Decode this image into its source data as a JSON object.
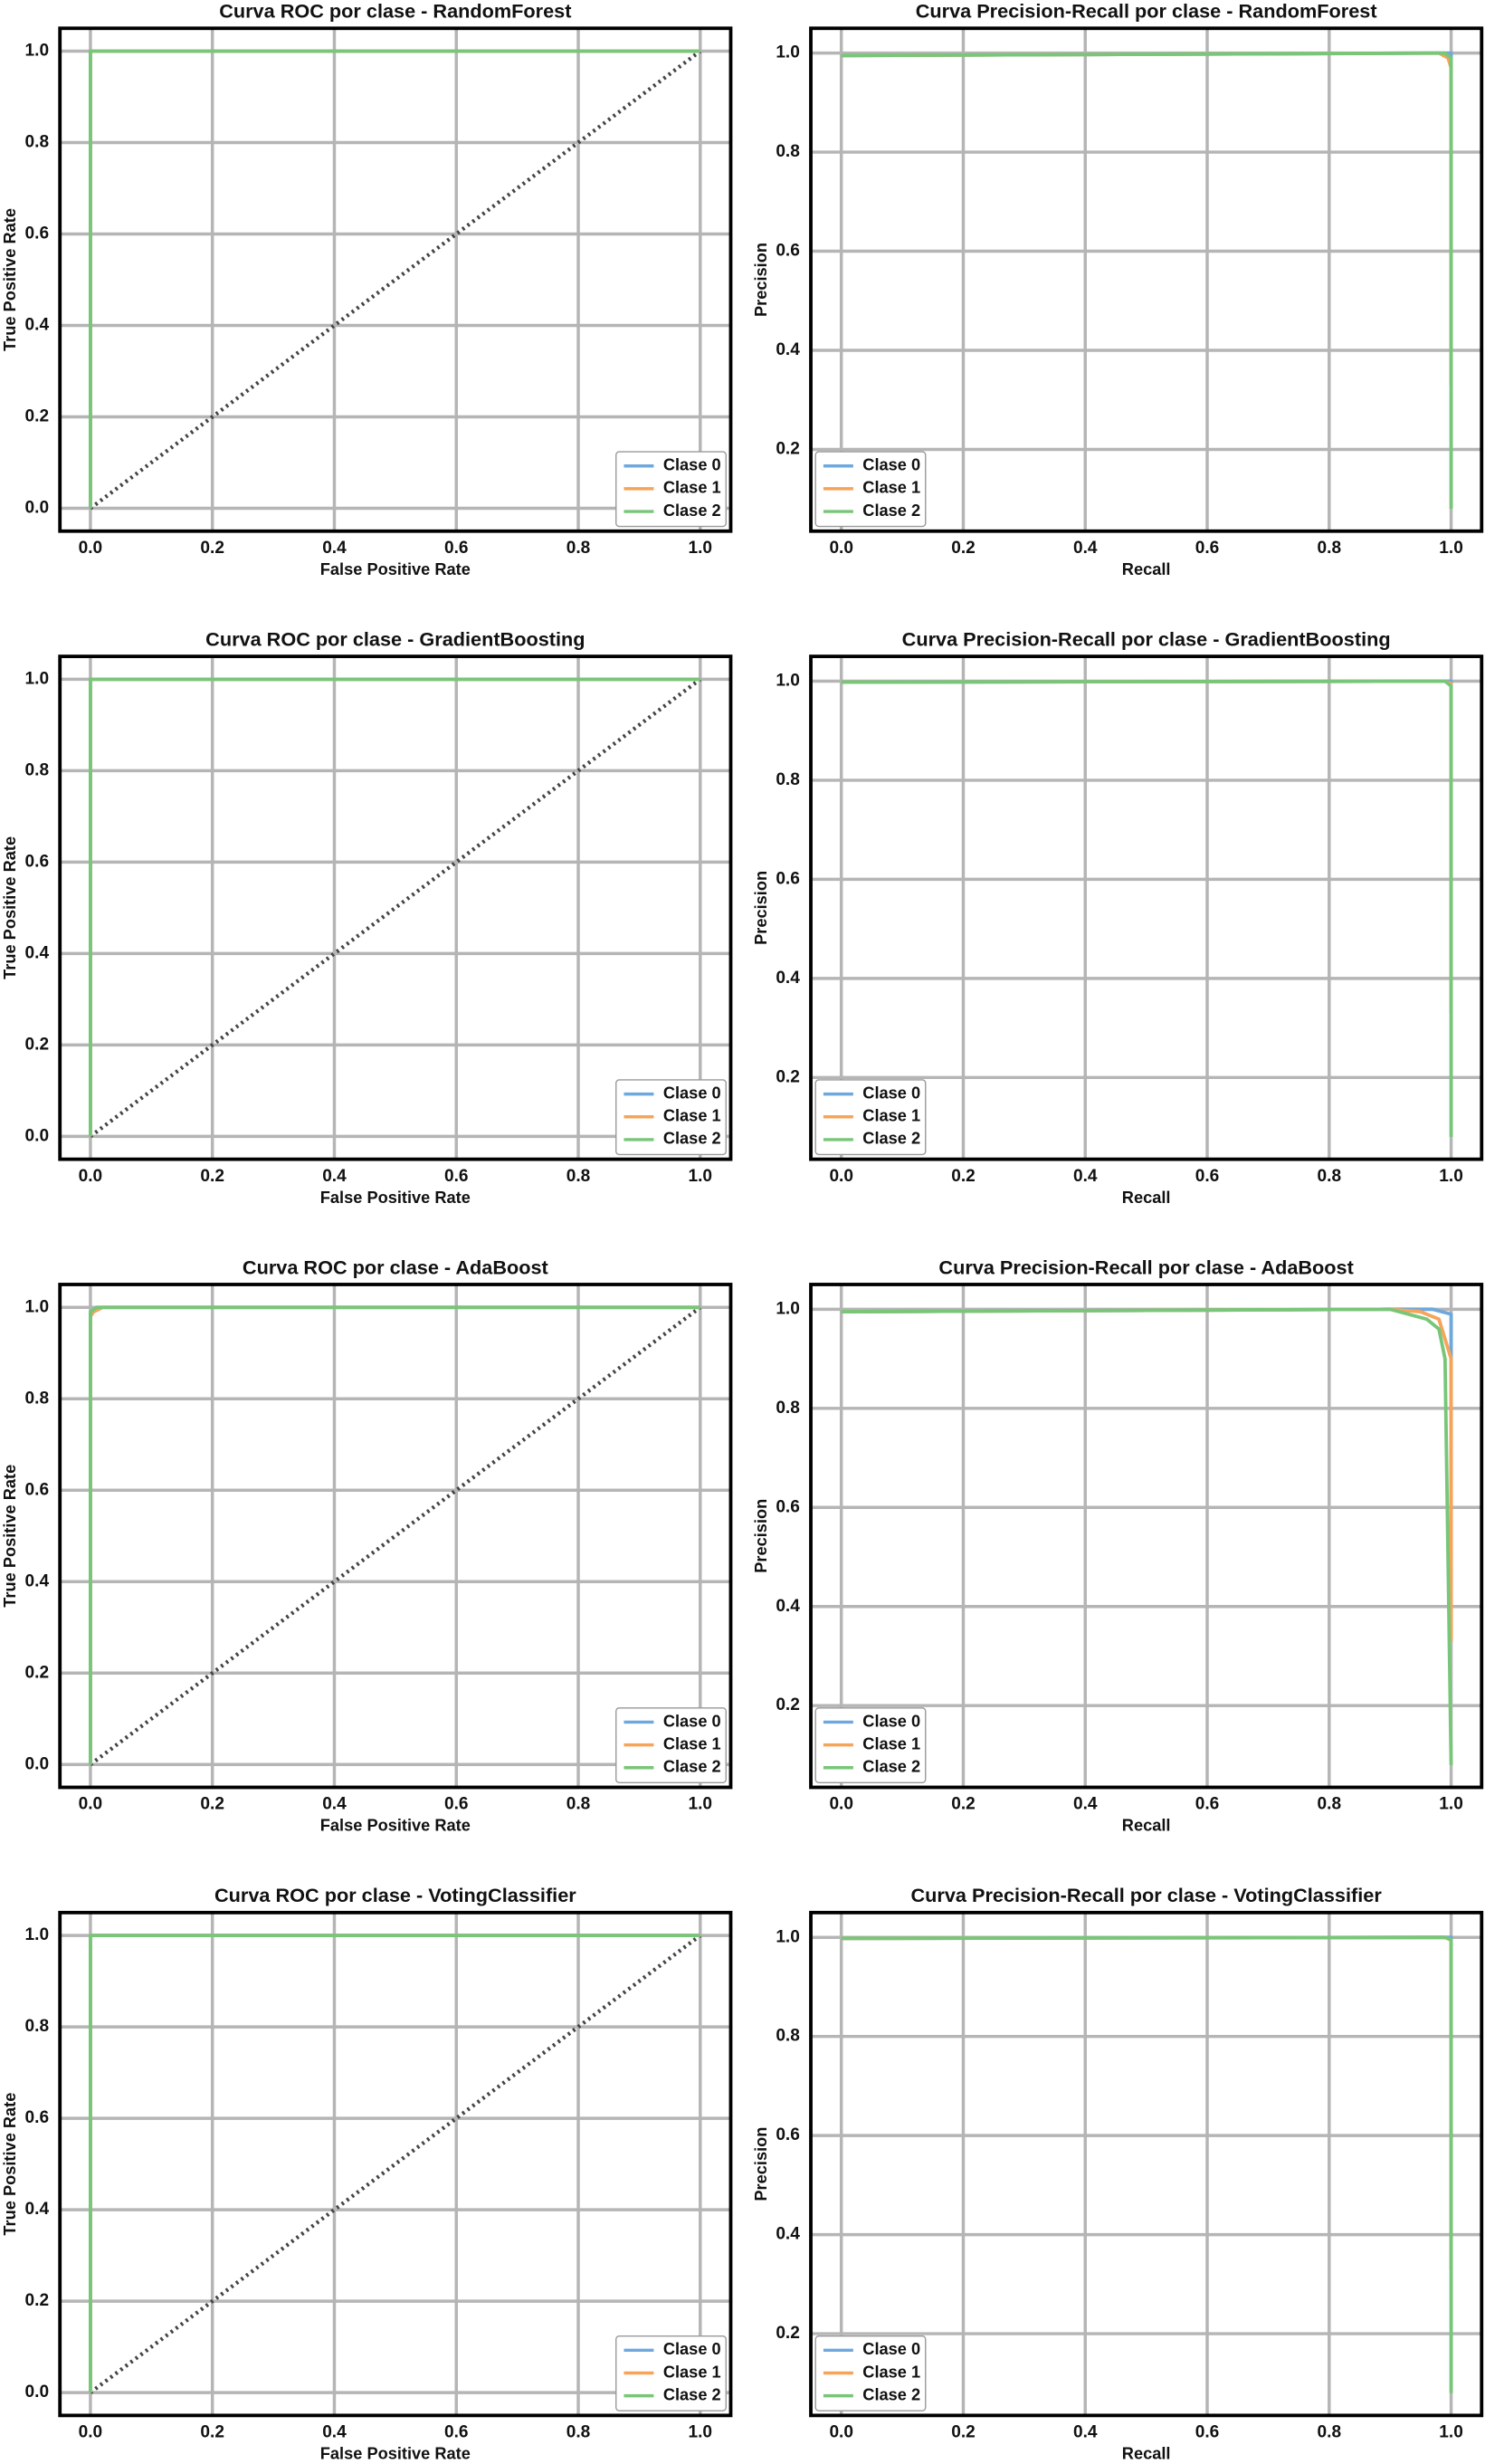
{
  "chart_data": [
    {
      "type": "line",
      "title": "Curva ROC por clase -  RandomForest",
      "xlabel": "False Positive Rate",
      "ylabel": "True Positive Rate",
      "xlim": [
        -0.05,
        1.05
      ],
      "ylim": [
        -0.05,
        1.05
      ],
      "grid": true,
      "legend": "lower right",
      "xticks": [
        {
          "value": 0,
          "label": "0.0"
        },
        0.2,
        0.4,
        0.6,
        0.8,
        {
          "value": 1,
          "label": "1.0"
        }
      ],
      "yticks": [
        {
          "value": 0,
          "label": "0.0"
        },
        0.2,
        0.4,
        0.6,
        0.8,
        {
          "value": 1,
          "label": "1.0"
        }
      ],
      "reference": {
        "x": [
          0,
          1
        ],
        "values": [
          0,
          1
        ],
        "color": "#444444"
      },
      "series": [
        {
          "name": "Clase 0",
          "color": "#6fa8dc",
          "x": [
            0,
            0,
            1
          ],
          "values": [
            0,
            1,
            1
          ]
        },
        {
          "name": "Clase 1",
          "color": "#f6a45a",
          "x": [
            0,
            0,
            1
          ],
          "values": [
            0,
            1,
            1
          ]
        },
        {
          "name": "Clase 2",
          "color": "#78c679",
          "x": [
            0,
            0,
            1
          ],
          "values": [
            0,
            1,
            1
          ]
        }
      ]
    },
    {
      "type": "line",
      "title": "Curva Precision-Recall por clase - RandomForest",
      "xlabel": "Recall",
      "ylabel": "Precision",
      "xlim": [
        -0.05,
        1.05
      ],
      "ylim": [
        0.035,
        1.05
      ],
      "grid": true,
      "legend": "lower left",
      "xticks": [
        {
          "value": 0,
          "label": "0.0"
        },
        0.2,
        0.4,
        0.6,
        0.8,
        {
          "value": 1,
          "label": "1.0"
        }
      ],
      "yticks": [
        0.2,
        0.4,
        0.6,
        0.8,
        {
          "value": 1,
          "label": "1.0"
        }
      ],
      "series": [
        {
          "name": "Clase 0",
          "color": "#6fa8dc",
          "x": [
            0,
            0.98,
            1,
            1
          ],
          "values": [
            0.995,
            1,
            1,
            0.33
          ]
        },
        {
          "name": "Clase 1",
          "color": "#f6a45a",
          "x": [
            0,
            0.98,
            0.995,
            1,
            1
          ],
          "values": [
            0.995,
            1,
            0.99,
            0.97,
            0.33
          ]
        },
        {
          "name": "Clase 2",
          "color": "#78c679",
          "x": [
            0,
            0.99,
            1,
            1
          ],
          "values": [
            0.995,
            1,
            0.99,
            0.08
          ]
        }
      ]
    },
    {
      "type": "line",
      "title": "Curva ROC por clase -  GradientBoosting",
      "xlabel": "False Positive Rate",
      "ylabel": "True Positive Rate",
      "xlim": [
        -0.05,
        1.05
      ],
      "ylim": [
        -0.05,
        1.05
      ],
      "grid": true,
      "legend": "lower right",
      "xticks": [
        {
          "value": 0,
          "label": "0.0"
        },
        0.2,
        0.4,
        0.6,
        0.8,
        {
          "value": 1,
          "label": "1.0"
        }
      ],
      "yticks": [
        {
          "value": 0,
          "label": "0.0"
        },
        0.2,
        0.4,
        0.6,
        0.8,
        {
          "value": 1,
          "label": "1.0"
        }
      ],
      "reference": {
        "x": [
          0,
          1
        ],
        "values": [
          0,
          1
        ],
        "color": "#444444"
      },
      "series": [
        {
          "name": "Clase 0",
          "color": "#6fa8dc",
          "x": [
            0,
            0,
            1
          ],
          "values": [
            0,
            1,
            1
          ]
        },
        {
          "name": "Clase 1",
          "color": "#f6a45a",
          "x": [
            0,
            0,
            1
          ],
          "values": [
            0,
            1,
            1
          ]
        },
        {
          "name": "Clase 2",
          "color": "#78c679",
          "x": [
            0,
            0,
            1
          ],
          "values": [
            0,
            1,
            1
          ]
        }
      ]
    },
    {
      "type": "line",
      "title": "Curva Precision-Recall por clase - GradientBoosting",
      "xlabel": "Recall",
      "ylabel": "Precision",
      "xlim": [
        -0.05,
        1.05
      ],
      "ylim": [
        0.035,
        1.05
      ],
      "grid": true,
      "legend": "lower left",
      "xticks": [
        {
          "value": 0,
          "label": "0.0"
        },
        0.2,
        0.4,
        0.6,
        0.8,
        {
          "value": 1,
          "label": "1.0"
        }
      ],
      "yticks": [
        0.2,
        0.4,
        0.6,
        0.8,
        {
          "value": 1,
          "label": "1.0"
        }
      ],
      "series": [
        {
          "name": "Clase 0",
          "color": "#6fa8dc",
          "x": [
            0,
            0.99,
            1,
            1
          ],
          "values": [
            0.998,
            1,
            1,
            0.33
          ]
        },
        {
          "name": "Clase 1",
          "color": "#f6a45a",
          "x": [
            0,
            0.99,
            1,
            1
          ],
          "values": [
            0.998,
            1,
            0.995,
            0.33
          ]
        },
        {
          "name": "Clase 2",
          "color": "#78c679",
          "x": [
            0,
            0.99,
            1,
            1
          ],
          "values": [
            0.998,
            1,
            0.99,
            0.08
          ]
        }
      ]
    },
    {
      "type": "line",
      "title": "Curva ROC por clase -  AdaBoost",
      "xlabel": "False Positive Rate",
      "ylabel": "True Positive Rate",
      "xlim": [
        -0.05,
        1.05
      ],
      "ylim": [
        -0.05,
        1.05
      ],
      "grid": true,
      "legend": "lower right",
      "xticks": [
        {
          "value": 0,
          "label": "0.0"
        },
        0.2,
        0.4,
        0.6,
        0.8,
        {
          "value": 1,
          "label": "1.0"
        }
      ],
      "yticks": [
        {
          "value": 0,
          "label": "0.0"
        },
        0.2,
        0.4,
        0.6,
        0.8,
        {
          "value": 1,
          "label": "1.0"
        }
      ],
      "reference": {
        "x": [
          0,
          1
        ],
        "values": [
          0,
          1
        ],
        "color": "#444444"
      },
      "series": [
        {
          "name": "Clase 0",
          "color": "#6fa8dc",
          "x": [
            0,
            0,
            0.01,
            1
          ],
          "values": [
            0,
            0.99,
            1,
            1
          ]
        },
        {
          "name": "Clase 1",
          "color": "#f6a45a",
          "x": [
            0,
            0,
            0.005,
            0.02,
            1
          ],
          "values": [
            0,
            0.98,
            0.99,
            1,
            1
          ]
        },
        {
          "name": "Clase 2",
          "color": "#78c679",
          "x": [
            0,
            0,
            0.01,
            1
          ],
          "values": [
            0,
            0.99,
            1,
            1
          ]
        }
      ]
    },
    {
      "type": "line",
      "title": "Curva Precision-Recall por clase - AdaBoost",
      "xlabel": "Recall",
      "ylabel": "Precision",
      "xlim": [
        -0.05,
        1.05
      ],
      "ylim": [
        0.035,
        1.05
      ],
      "grid": true,
      "legend": "lower left",
      "xticks": [
        {
          "value": 0,
          "label": "0.0"
        },
        0.2,
        0.4,
        0.6,
        0.8,
        {
          "value": 1,
          "label": "1.0"
        }
      ],
      "yticks": [
        0.2,
        0.4,
        0.6,
        0.8,
        {
          "value": 1,
          "label": "1.0"
        }
      ],
      "series": [
        {
          "name": "Clase 0",
          "color": "#6fa8dc",
          "x": [
            0,
            0.9,
            0.97,
            1,
            1
          ],
          "values": [
            0.995,
            1,
            1,
            0.99,
            0.33
          ]
        },
        {
          "name": "Clase 1",
          "color": "#f6a45a",
          "x": [
            0,
            0.9,
            0.95,
            0.98,
            1,
            1
          ],
          "values": [
            0.995,
            1,
            0.995,
            0.98,
            0.9,
            0.33
          ]
        },
        {
          "name": "Clase 2",
          "color": "#78c679",
          "x": [
            0,
            0.9,
            0.93,
            0.96,
            0.98,
            0.99,
            1
          ],
          "values": [
            0.995,
            1,
            0.99,
            0.98,
            0.96,
            0.9,
            0.08
          ]
        }
      ]
    },
    {
      "type": "line",
      "title": "Curva ROC por clase -  VotingClassifier",
      "xlabel": "False Positive Rate",
      "ylabel": "True Positive Rate",
      "xlim": [
        -0.05,
        1.05
      ],
      "ylim": [
        -0.05,
        1.05
      ],
      "grid": true,
      "legend": "lower right",
      "xticks": [
        {
          "value": 0,
          "label": "0.0"
        },
        0.2,
        0.4,
        0.6,
        0.8,
        {
          "value": 1,
          "label": "1.0"
        }
      ],
      "yticks": [
        {
          "value": 0,
          "label": "0.0"
        },
        0.2,
        0.4,
        0.6,
        0.8,
        {
          "value": 1,
          "label": "1.0"
        }
      ],
      "reference": {
        "x": [
          0,
          1
        ],
        "values": [
          0,
          1
        ],
        "color": "#444444"
      },
      "series": [
        {
          "name": "Clase 0",
          "color": "#6fa8dc",
          "x": [
            0,
            0,
            1
          ],
          "values": [
            0,
            1,
            1
          ]
        },
        {
          "name": "Clase 1",
          "color": "#f6a45a",
          "x": [
            0,
            0,
            1
          ],
          "values": [
            0,
            1,
            1
          ]
        },
        {
          "name": "Clase 2",
          "color": "#78c679",
          "x": [
            0,
            0,
            1
          ],
          "values": [
            0,
            1,
            1
          ]
        }
      ]
    },
    {
      "type": "line",
      "title": "Curva Precision-Recall por clase - VotingClassifier",
      "xlabel": "Recall",
      "ylabel": "Precision",
      "xlim": [
        -0.05,
        1.05
      ],
      "ylim": [
        0.035,
        1.05
      ],
      "grid": true,
      "legend": "lower left",
      "xticks": [
        {
          "value": 0,
          "label": "0.0"
        },
        0.2,
        0.4,
        0.6,
        0.8,
        {
          "value": 1,
          "label": "1.0"
        }
      ],
      "yticks": [
        0.2,
        0.4,
        0.6,
        0.8,
        {
          "value": 1,
          "label": "1.0"
        }
      ],
      "series": [
        {
          "name": "Clase 0",
          "color": "#6fa8dc",
          "x": [
            0,
            0.99,
            1,
            1
          ],
          "values": [
            0.998,
            1,
            1,
            0.33
          ]
        },
        {
          "name": "Clase 1",
          "color": "#f6a45a",
          "x": [
            0,
            0.99,
            1,
            1
          ],
          "values": [
            0.998,
            1,
            0.995,
            0.33
          ]
        },
        {
          "name": "Clase 2",
          "color": "#78c679",
          "x": [
            0,
            0.99,
            1,
            1
          ],
          "values": [
            0.998,
            1,
            0.995,
            0.08
          ]
        }
      ]
    }
  ]
}
